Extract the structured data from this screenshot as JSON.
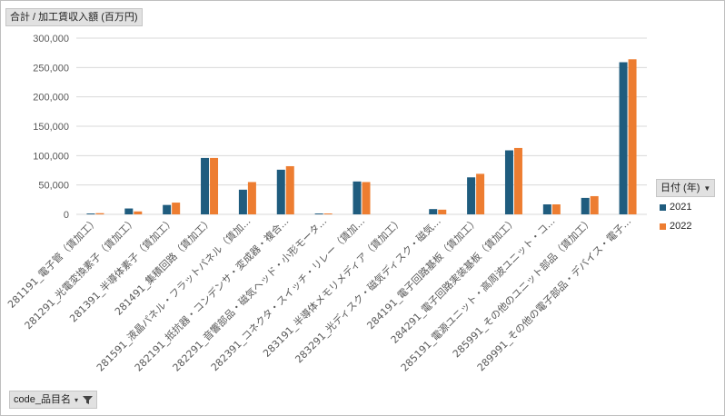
{
  "value_field": {
    "label": "合計 / 加工賃収入額 (百万円)"
  },
  "axis_field": {
    "label": "code_品目名"
  },
  "legend_field": {
    "label": "日付 (年)"
  },
  "colors": {
    "series_2021": "#1f5c7e",
    "series_2022": "#ed7d31",
    "grid": "#d9d9d9",
    "axis_text": "#595959"
  },
  "chart_data": {
    "type": "bar",
    "ylim": [
      0,
      300000
    ],
    "yticks": [
      "0",
      "50,000",
      "100,000",
      "150,000",
      "200,000",
      "250,000",
      "300,000"
    ],
    "ytick_values": [
      0,
      50000,
      100000,
      150000,
      200000,
      250000,
      300000
    ],
    "grid": true,
    "legend_position": "right",
    "categories": [
      "281191_電子管（賃加工）",
      "281291_光電変換素子（賃加工）",
      "281391_半導体素子（賃加工）",
      "281491_集積回路（賃加工）",
      "281591_液晶パネル・フラットパネル（賃加...",
      "282191_抵抗器・コンデンサ・変成器・複合...",
      "282291_音響部品・磁気ヘッド・小形モータ...",
      "282391_コネクタ・スイッチ・リレー（賃加...",
      "283191_半導体メモリメディア（賃加工）",
      "283291_光ディスク・磁気ディスク・磁気...",
      "284191_電子回路基板（賃加工）",
      "284291_電子回路実装基板（賃加工）",
      "285191_電源ユニット・高周波ユニット・コ...",
      "285991_その他のユニット部品（賃加工）",
      "289991_その他の電子部品・デバイス・電子..."
    ],
    "series": [
      {
        "name": "2021",
        "values": [
          1500,
          10000,
          16000,
          96000,
          42000,
          76000,
          1500,
          56000,
          0,
          9000,
          63000,
          109000,
          17000,
          28000,
          259000
        ]
      },
      {
        "name": "2022",
        "values": [
          2000,
          5000,
          20000,
          96000,
          55000,
          82000,
          1500,
          55000,
          0,
          8000,
          69000,
          113000,
          17000,
          31000,
          264000
        ]
      }
    ]
  }
}
